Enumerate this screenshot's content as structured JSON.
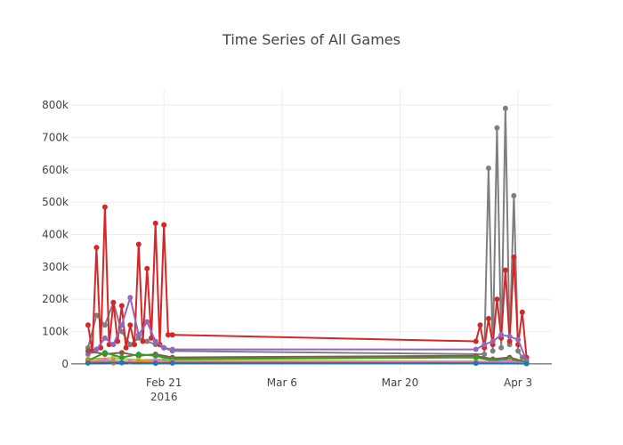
{
  "chart_data": {
    "type": "line",
    "title": "Time Series of All Games",
    "xlabel": "",
    "ylabel": "",
    "x_range": [
      "2016-02-10",
      "2016-04-07"
    ],
    "ylim": [
      -25000,
      850000
    ],
    "grid": true,
    "legend": "none",
    "x_ticks": [
      {
        "date": "2016-02-21",
        "label": "Feb 21",
        "sublabel": "2016"
      },
      {
        "date": "2016-03-06",
        "label": "Mar 6"
      },
      {
        "date": "2016-03-20",
        "label": "Mar 20"
      },
      {
        "date": "2016-04-03",
        "label": "Apr 3"
      }
    ],
    "y_ticks": [
      {
        "value": 0,
        "label": "0"
      },
      {
        "value": 100000,
        "label": "100k"
      },
      {
        "value": 200000,
        "label": "200k"
      },
      {
        "value": 300000,
        "label": "300k"
      },
      {
        "value": 400000,
        "label": "400k"
      },
      {
        "value": 500000,
        "label": "500k"
      },
      {
        "value": 600000,
        "label": "600k"
      },
      {
        "value": 700000,
        "label": "700k"
      },
      {
        "value": 800000,
        "label": "800k"
      }
    ],
    "series": [
      {
        "color": "#7f7f7f",
        "x": [
          "2016-02-12",
          "2016-02-13",
          "2016-02-14",
          "2016-02-15",
          "2016-02-16",
          "2016-02-17",
          "2016-02-18",
          "2016-02-19",
          "2016-02-20",
          "2016-02-21",
          "2016-02-22",
          "2016-03-30",
          "2016-03-30T12:00",
          "2016-03-31",
          "2016-03-31T12:00",
          "2016-04-01",
          "2016-04-01T12:00",
          "2016-04-02",
          "2016-04-02T12:00",
          "2016-04-03",
          "2016-04-03T12:00",
          "2016-04-04"
        ],
        "y": [
          50000,
          150000,
          120000,
          190000,
          100000,
          60000,
          80000,
          70000,
          60000,
          50000,
          40000,
          30000,
          605000,
          40000,
          730000,
          50000,
          790000,
          60000,
          520000,
          40000,
          20000,
          10000
        ]
      },
      {
        "color": "#d62728",
        "x": [
          "2016-02-12",
          "2016-02-12T12:00",
          "2016-02-13",
          "2016-02-13T12:00",
          "2016-02-14",
          "2016-02-14T12:00",
          "2016-02-15",
          "2016-02-15T12:00",
          "2016-02-16",
          "2016-02-16T12:00",
          "2016-02-17",
          "2016-02-17T12:00",
          "2016-02-18",
          "2016-02-18T12:00",
          "2016-02-19",
          "2016-02-19T12:00",
          "2016-02-20",
          "2016-02-20T12:00",
          "2016-02-21",
          "2016-02-21T12:00",
          "2016-02-22",
          "2016-03-29",
          "2016-03-29T12:00",
          "2016-03-30",
          "2016-03-30T12:00",
          "2016-03-31",
          "2016-03-31T12:00",
          "2016-04-01",
          "2016-04-01T12:00",
          "2016-04-02",
          "2016-04-02T12:00",
          "2016-04-03",
          "2016-04-03T12:00",
          "2016-04-04"
        ],
        "y": [
          120000,
          40000,
          360000,
          50000,
          485000,
          60000,
          190000,
          70000,
          180000,
          50000,
          120000,
          60000,
          370000,
          70000,
          295000,
          80000,
          435000,
          60000,
          430000,
          90000,
          90000,
          70000,
          120000,
          50000,
          140000,
          60000,
          200000,
          80000,
          290000,
          70000,
          330000,
          60000,
          160000,
          20000
        ]
      },
      {
        "color": "#9467bd",
        "x": [
          "2016-02-12",
          "2016-02-13",
          "2016-02-14",
          "2016-02-15",
          "2016-02-16",
          "2016-02-17",
          "2016-02-18",
          "2016-02-19",
          "2016-02-20",
          "2016-02-21",
          "2016-02-22",
          "2016-03-29",
          "2016-03-30",
          "2016-03-31",
          "2016-04-01",
          "2016-04-02",
          "2016-04-03",
          "2016-04-04"
        ],
        "y": [
          30000,
          45000,
          80000,
          60000,
          120000,
          205000,
          90000,
          130000,
          70000,
          50000,
          45000,
          45000,
          60000,
          70000,
          90000,
          85000,
          75000,
          10000
        ]
      },
      {
        "color": "#8c564b",
        "x": [
          "2016-02-12",
          "2016-02-14",
          "2016-02-16",
          "2016-02-18",
          "2016-02-20",
          "2016-02-22",
          "2016-03-29",
          "2016-03-31",
          "2016-04-02",
          "2016-04-04"
        ],
        "y": [
          40000,
          30000,
          35000,
          25000,
          30000,
          20000,
          25000,
          15000,
          20000,
          5000
        ]
      },
      {
        "color": "#bcbd22",
        "x": [
          "2016-02-12",
          "2016-02-15",
          "2016-02-18",
          "2016-02-21",
          "2016-02-22",
          "2016-03-29",
          "2016-04-01",
          "2016-04-04"
        ],
        "y": [
          15000,
          18000,
          12000,
          14000,
          10000,
          8000,
          6000,
          4000
        ]
      },
      {
        "color": "#2ca02c",
        "x": [
          "2016-02-12",
          "2016-02-14",
          "2016-02-16",
          "2016-02-18",
          "2016-02-20",
          "2016-02-22",
          "2016-03-29",
          "2016-03-31",
          "2016-04-02",
          "2016-04-04"
        ],
        "y": [
          10000,
          35000,
          20000,
          30000,
          25000,
          15000,
          20000,
          10000,
          15000,
          3000
        ]
      },
      {
        "color": "#17becf",
        "x": [
          "2016-02-12",
          "2016-02-15",
          "2016-02-18",
          "2016-02-21",
          "2016-02-22",
          "2016-03-29",
          "2016-04-01",
          "2016-04-04"
        ],
        "y": [
          5000,
          8000,
          6000,
          7000,
          5000,
          4000,
          6000,
          2000
        ]
      },
      {
        "color": "#e377c2",
        "x": [
          "2016-02-12",
          "2016-02-14",
          "2016-02-17",
          "2016-02-20",
          "2016-02-22",
          "2016-03-29",
          "2016-04-02",
          "2016-04-04"
        ],
        "y": [
          8000,
          12000,
          6000,
          10000,
          7000,
          5000,
          8000,
          2000
        ]
      },
      {
        "color": "#ff7f0e",
        "x": [
          "2016-02-12",
          "2016-02-15",
          "2016-02-18",
          "2016-02-22",
          "2016-03-29",
          "2016-04-04"
        ],
        "y": [
          6000,
          3000,
          5000,
          4000,
          3000,
          1000
        ]
      },
      {
        "color": "#1f77b4",
        "x": [
          "2016-02-12",
          "2016-02-16",
          "2016-02-20",
          "2016-02-22",
          "2016-03-29",
          "2016-04-04"
        ],
        "y": [
          3000,
          4000,
          2000,
          3000,
          2000,
          1000
        ]
      }
    ]
  }
}
